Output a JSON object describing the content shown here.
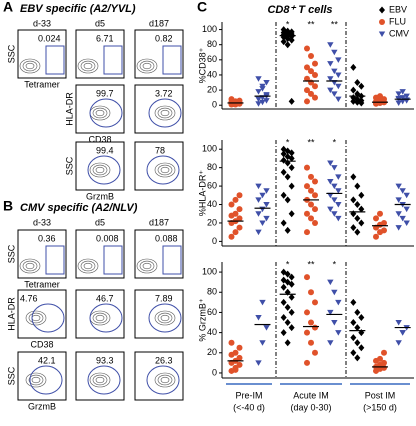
{
  "panels": [
    {
      "label": "A",
      "title": "EBV specific (A2/YVL)",
      "columns": [
        "d-33",
        "d5",
        "d187"
      ],
      "rows": [
        {
          "ylabel": "SSC",
          "xlabel": "Tetramer",
          "cells": [
            "0.024",
            "6.71",
            "0.82"
          ]
        },
        {
          "ylabel": "HLA-DR",
          "xlabel": "CD38",
          "cells": [
            null,
            "99.7",
            "3.72"
          ]
        },
        {
          "ylabel": "SSC",
          "xlabel": "GrzmB",
          "cells": [
            null,
            "99.4",
            "78"
          ]
        }
      ]
    },
    {
      "label": "B",
      "title": "CMV specific (A2/NLV)",
      "columns": [
        "d-33",
        "d5",
        "d187"
      ],
      "rows": [
        {
          "ylabel": "SSC",
          "xlabel": "Tetramer",
          "cells": [
            "0.36",
            "0.008",
            "0.088"
          ]
        },
        {
          "ylabel": "HLA-DR",
          "xlabel": "CD38",
          "cells": [
            "4.76",
            "46.7",
            "7.89"
          ]
        },
        {
          "ylabel": "SSC",
          "xlabel": "GrzmB",
          "cells": [
            "42.1",
            "93.3",
            "26.3"
          ]
        }
      ]
    }
  ],
  "panel_c": {
    "label": "C",
    "title": "CD8⁺ T cells",
    "categories": [
      [
        "Pre-IM",
        "(<-40 d)"
      ],
      [
        "Acute IM",
        "(day 0-30)"
      ],
      [
        "Post IM",
        "(>150 d)"
      ]
    ]
  },
  "chart_data": [
    {
      "type": "strip",
      "ylabel": "%CD38⁺",
      "ylim": [
        -5,
        110
      ],
      "yticks": [
        0,
        20,
        40,
        60,
        80,
        100
      ],
      "legend": "upper right",
      "significance": [
        "*",
        "**",
        "**"
      ],
      "series": [
        {
          "name": "EBV",
          "color": "#000000",
          "marker": "diamond",
          "values": [
            null,
            [
              100,
              98,
              97,
              96,
              95,
              94,
              93,
              92,
              91,
              90,
              88,
              86,
              84,
              80,
              5
            ],
            [
              50,
              30,
              25,
              20,
              15,
              12,
              10,
              8,
              6,
              5,
              4,
              3
            ]
          ],
          "medians": [
            null,
            92,
            12
          ]
        },
        {
          "name": "FLU",
          "color": "#e0522a",
          "marker": "circle",
          "values": [
            [
              1,
              2,
              3,
              4,
              5,
              6,
              2,
              1,
              3,
              8,
              5,
              2,
              4
            ],
            [
              75,
              65,
              55,
              50,
              45,
              40,
              35,
              30,
              25,
              20,
              15,
              10,
              5
            ],
            [
              2,
              3,
              4,
              5,
              6,
              8,
              10,
              12,
              4,
              3
            ]
          ],
          "medians": [
            3,
            32,
            4
          ]
        },
        {
          "name": "CMV",
          "color": "#3f4fa8",
          "marker": "triangle-down",
          "values": [
            [
              2,
              4,
              6,
              8,
              10,
              14,
              18,
              22,
              30,
              35,
              25,
              12
            ],
            [
              80,
              70,
              60,
              55,
              45,
              40,
              35,
              30,
              25,
              20,
              15,
              8
            ],
            [
              3,
              5,
              7,
              9,
              10,
              12,
              15,
              18,
              6,
              8
            ]
          ],
          "medians": [
            12,
            32,
            8
          ]
        }
      ]
    },
    {
      "type": "strip",
      "ylabel": "%HLA-DR⁺",
      "ylim": [
        -5,
        110
      ],
      "yticks": [
        0,
        20,
        40,
        60,
        80,
        100
      ],
      "significance": [
        "*",
        "**",
        "*"
      ],
      "series": [
        {
          "name": "EBV",
          "color": "#000000",
          "marker": "diamond",
          "values": [
            null,
            [
              100,
              98,
              96,
              95,
              92,
              90,
              88,
              85,
              80,
              75,
              70,
              60,
              50,
              45,
              30,
              20,
              12
            ],
            [
              70,
              60,
              50,
              45,
              40,
              35,
              30,
              25,
              20,
              15,
              10
            ]
          ],
          "medians": [
            null,
            87,
            32
          ]
        },
        {
          "name": "FLU",
          "color": "#e0522a",
          "marker": "circle",
          "values": [
            [
              5,
              10,
              15,
              20,
              22,
              25,
              28,
              30,
              35,
              40,
              45,
              50
            ],
            [
              80,
              70,
              65,
              60,
              55,
              50,
              45,
              40,
              35,
              30,
              25,
              20,
              10
            ],
            [
              5,
              10,
              12,
              15,
              18,
              20,
              25,
              30
            ]
          ],
          "medians": [
            22,
            45,
            17
          ]
        },
        {
          "name": "CMV",
          "color": "#3f4fa8",
          "marker": "triangle-down",
          "values": [
            [
              10,
              20,
              25,
              30,
              35,
              40,
              45,
              50,
              55,
              60
            ],
            [
              85,
              80,
              70,
              65,
              60,
              55,
              50,
              45,
              40,
              35,
              30,
              25
            ],
            [
              60,
              55,
              50,
              45,
              40,
              35,
              30,
              25,
              20,
              15
            ]
          ],
          "medians": [
            36,
            52,
            40
          ]
        }
      ]
    },
    {
      "type": "strip",
      "ylabel": "% GrzmB⁺",
      "ylim": [
        -5,
        110
      ],
      "yticks": [
        0,
        20,
        40,
        60,
        80,
        100
      ],
      "significance": [
        "*",
        "**",
        "*"
      ],
      "series": [
        {
          "name": "EBV",
          "color": "#000000",
          "marker": "diamond",
          "values": [
            null,
            [
              100,
              98,
              95,
              92,
              90,
              88,
              85,
              80,
              75,
              70,
              65,
              60,
              55,
              50,
              45,
              40,
              30
            ],
            [
              70,
              60,
              55,
              50,
              45,
              40,
              35,
              30,
              25,
              20,
              15
            ]
          ],
          "medians": [
            null,
            78,
            42
          ]
        },
        {
          "name": "FLU",
          "color": "#e0522a",
          "marker": "circle",
          "values": [
            [
              2,
              5,
              8,
              10,
              12,
              15,
              18,
              20,
              25,
              30,
              3
            ],
            [
              95,
              80,
              70,
              60,
              50,
              45,
              40,
              30,
              20,
              10
            ],
            [
              2,
              4,
              5,
              6,
              8,
              10,
              12,
              14,
              20
            ]
          ],
          "medians": [
            12,
            46,
            6
          ]
        },
        {
          "name": "CMV",
          "color": "#3f4fa8",
          "marker": "triangle-down",
          "values": [
            [
              10,
              30,
              45,
              55,
              70
            ],
            [
              90,
              80,
              70,
              60,
              50,
              40,
              30
            ],
            [
              30,
              40,
              45,
              50,
              40
            ]
          ],
          "medians": [
            48,
            58,
            45
          ]
        }
      ]
    }
  ]
}
